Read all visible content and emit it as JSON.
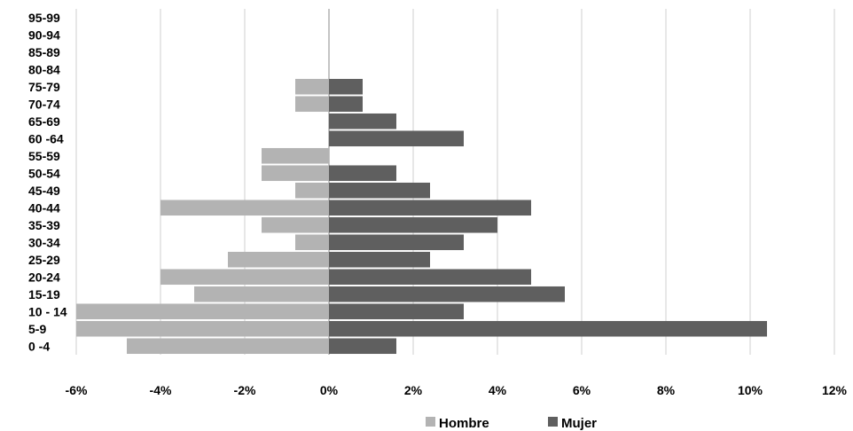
{
  "chart_data": {
    "type": "bar",
    "orientation": "horizontal",
    "title": "",
    "xlabel": "",
    "ylabel": "",
    "categories": [
      "0 -4",
      "5-9",
      "10 - 14",
      "15-19",
      "20-24",
      "25-29",
      "30-34",
      "35-39",
      "40-44",
      "45-49",
      "50-54",
      "55-59",
      "60 -64",
      "65-69",
      "70-74",
      "75-79",
      "80-84",
      "85-89",
      "90-94",
      "95-99"
    ],
    "series": [
      {
        "name": "Hombre",
        "color": "#b3b3b3",
        "values": [
          -4.8,
          -6.0,
          -6.0,
          -3.2,
          -4.0,
          -2.4,
          -0.8,
          -1.6,
          -4.0,
          -0.8,
          -1.6,
          -1.6,
          0,
          0,
          -0.8,
          -0.8,
          0,
          0,
          0,
          0
        ]
      },
      {
        "name": "Mujer",
        "color": "#5f5f5f",
        "values": [
          1.6,
          10.4,
          3.2,
          5.6,
          4.8,
          2.4,
          3.2,
          4.0,
          4.8,
          2.4,
          1.6,
          0,
          3.2,
          1.6,
          0.8,
          0.8,
          0,
          0,
          0,
          0
        ]
      }
    ],
    "xlim": [
      -6,
      12
    ],
    "xticks": [
      "-6%",
      "-4%",
      "-2%",
      "0%",
      "2%",
      "4%",
      "6%",
      "8%",
      "10%",
      "12%"
    ],
    "grid": "vertical",
    "legend": "bottom"
  }
}
